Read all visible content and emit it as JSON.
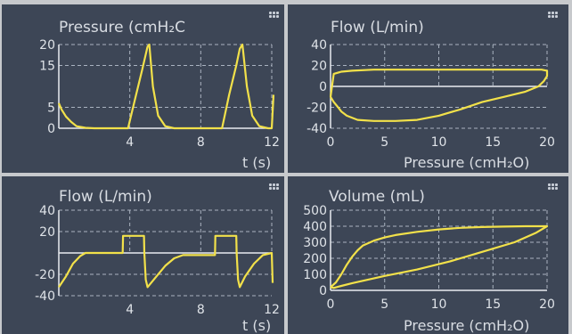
{
  "chart_data": [
    {
      "type": "line",
      "title": "Pressure (cmH₂C",
      "xlabel": "t (s)",
      "ylabel": "",
      "xlim": [
        0,
        12
      ],
      "ylim": [
        0,
        20
      ],
      "x_ticks": [
        "4",
        "8",
        "12"
      ],
      "y_ticks": [
        "0",
        "5",
        "15",
        "20"
      ],
      "grid": true,
      "line_color": "#f2e14a",
      "series": [
        {
          "x": [
            0,
            0.15,
            0.4,
            0.7,
            1.0,
            1.5,
            2.0,
            3.9,
            4.3,
            4.7,
            5.0,
            5.1,
            5.3,
            5.6,
            6.0,
            6.5,
            7.0,
            9.2,
            9.6,
            10.0,
            10.2,
            10.35,
            10.6,
            10.9,
            11.3,
            11.8,
            12.0,
            12.1
          ],
          "y": [
            6,
            4.5,
            2.8,
            1.5,
            0.5,
            0.1,
            0,
            0,
            7,
            14,
            19.5,
            20,
            10,
            3,
            0.5,
            0,
            0,
            0,
            8,
            15,
            19,
            20,
            10,
            3,
            0.5,
            0,
            0,
            8
          ]
        }
      ]
    },
    {
      "type": "line",
      "title": "Flow (L/min)",
      "xlabel": "Pressure (cmH₂O)",
      "ylabel": "",
      "xlim": [
        0,
        20
      ],
      "ylim": [
        -40,
        40
      ],
      "x_ticks": [
        "0",
        "5",
        "10",
        "15",
        "20"
      ],
      "y_ticks": [
        "40",
        "20",
        "0",
        "-20",
        "-40"
      ],
      "grid": true,
      "line_color": "#f2e14a",
      "series": [
        {
          "x": [
            0,
            0.3,
            0.7,
            1.0,
            1.5,
            2.5,
            4.0,
            6.0,
            8.0,
            10.0,
            12.0,
            14.0,
            16.0,
            18.0,
            19.2,
            19.7,
            20.0,
            20.0,
            19.5,
            18.5,
            16.0,
            13.0,
            10.0,
            7.0,
            4.0,
            2.0,
            1.0,
            0.3,
            0
          ],
          "y": [
            -10,
            -15,
            -20,
            -24,
            -28,
            -32,
            -33,
            -33,
            -32,
            -28,
            -22,
            -15,
            -10,
            -5,
            0,
            5,
            10,
            15,
            16,
            16,
            16,
            16,
            16,
            16,
            16,
            15,
            14,
            12,
            -10
          ]
        }
      ]
    },
    {
      "type": "line",
      "title": "Flow (L/min)",
      "xlabel": "t (s)",
      "ylabel": "",
      "xlim": [
        0,
        12
      ],
      "ylim": [
        -40,
        40
      ],
      "x_ticks": [
        "4",
        "8",
        "12"
      ],
      "y_ticks": [
        "40",
        "20",
        "-20",
        "-40"
      ],
      "grid": true,
      "line_color": "#f2e14a",
      "series": [
        {
          "x": [
            0,
            0.4,
            0.8,
            1.2,
            1.5,
            2.0,
            3.6,
            3.62,
            4.8,
            4.82,
            4.9,
            5.0,
            5.5,
            6.0,
            6.5,
            7.0,
            8.8,
            8.82,
            10.0,
            10.02,
            10.1,
            10.2,
            10.5,
            11.0,
            11.5,
            12.0,
            12.05
          ],
          "y": [
            -32,
            -22,
            -10,
            -3,
            0,
            0,
            0,
            16,
            16,
            0,
            -25,
            -32,
            -22,
            -12,
            -5,
            -2,
            -2,
            16,
            16,
            0,
            -25,
            -32,
            -22,
            -10,
            -2,
            0,
            -28
          ]
        }
      ]
    },
    {
      "type": "line",
      "title": "Volume (mL)",
      "xlabel": "Pressure (cmH₂O)",
      "ylabel": "",
      "xlim": [
        0,
        20
      ],
      "ylim": [
        0,
        500
      ],
      "x_ticks": [
        "0",
        "5",
        "10",
        "15",
        "20"
      ],
      "y_ticks": [
        "500",
        "400",
        "300",
        "200",
        "100",
        "0"
      ],
      "grid": true,
      "line_color": "#f2e14a",
      "series": [
        {
          "x": [
            0,
            0.5,
            1.0,
            1.5,
            2.0,
            2.5,
            3.0,
            4.0,
            5.0,
            6.0,
            8.0,
            10.0,
            12.0,
            14.0,
            16.0,
            18.0,
            20.0,
            19.0,
            17.0,
            14.0,
            11.0,
            8.0,
            5.0,
            2.0,
            1.0,
            0.3,
            0
          ],
          "y": [
            20,
            50,
            100,
            160,
            210,
            250,
            280,
            310,
            330,
            345,
            365,
            380,
            390,
            395,
            398,
            400,
            400,
            360,
            300,
            240,
            180,
            130,
            90,
            45,
            28,
            15,
            20
          ]
        }
      ]
    }
  ]
}
